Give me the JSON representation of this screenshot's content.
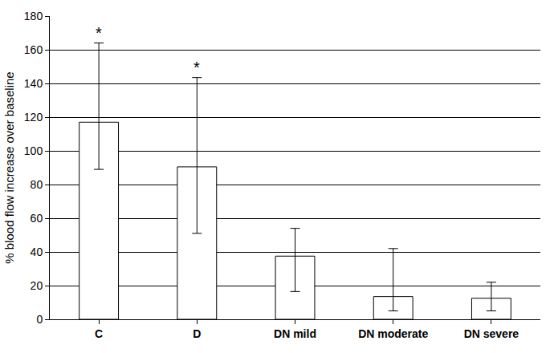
{
  "chart_data": {
    "type": "bar",
    "categories": [
      "C",
      "D",
      "DN mild",
      "DN moderate",
      "DN severe"
    ],
    "values": [
      117,
      90.5,
      37.5,
      13.5,
      12.5
    ],
    "error_upper": [
      164,
      143.5,
      54,
      42,
      22
    ],
    "error_lower": [
      89,
      51,
      16.5,
      5,
      5
    ],
    "color": "#ffffff",
    "y_label": "% blood flow increase over baseline",
    "ylim": [
      0,
      180
    ],
    "yticks": [
      0,
      20,
      40,
      60,
      80,
      100,
      120,
      140,
      160,
      180
    ],
    "grid": true,
    "annotations": [
      {
        "category": "C",
        "text": "*"
      },
      {
        "category": "D",
        "text": "*"
      }
    ]
  }
}
